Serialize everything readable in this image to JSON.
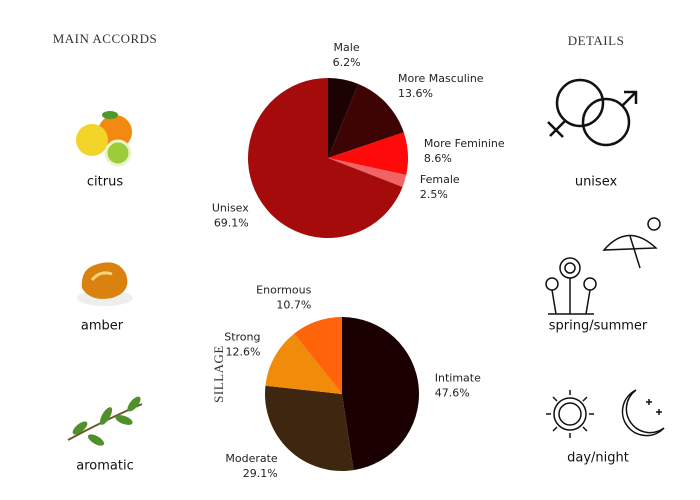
{
  "header": {
    "left": "MAIN ACCORDS",
    "right": "DETAILS"
  },
  "accords": [
    "citrus",
    "amber",
    "aromatic"
  ],
  "details": [
    "unisex",
    "spring/summer",
    "day/night"
  ],
  "chart_data": [
    {
      "type": "pie",
      "categories": [
        "Male",
        "More Masculine",
        "More Feminine",
        "Female",
        "Unisex"
      ],
      "values": [
        6.2,
        13.6,
        8.6,
        2.5,
        69.1
      ],
      "value_labels": [
        "6.2%",
        "13.6%",
        "8.6%",
        "2.5%",
        "69.1%"
      ],
      "colors": [
        "#1c0202",
        "#3e0404",
        "#ff0a0a",
        "#f06464",
        "#a50b0b"
      ]
    },
    {
      "type": "pie",
      "title": "SILLAGE",
      "categories": [
        "Intimate",
        "Moderate",
        "Strong",
        "Enormous"
      ],
      "values": [
        47.6,
        29.1,
        12.6,
        10.7
      ],
      "value_labels": [
        "47.6%",
        "29.1%",
        "12.6%",
        "10.7%"
      ],
      "colors": [
        "#1a0000",
        "#3e2610",
        "#f08c0a",
        "#ff640a"
      ]
    }
  ]
}
